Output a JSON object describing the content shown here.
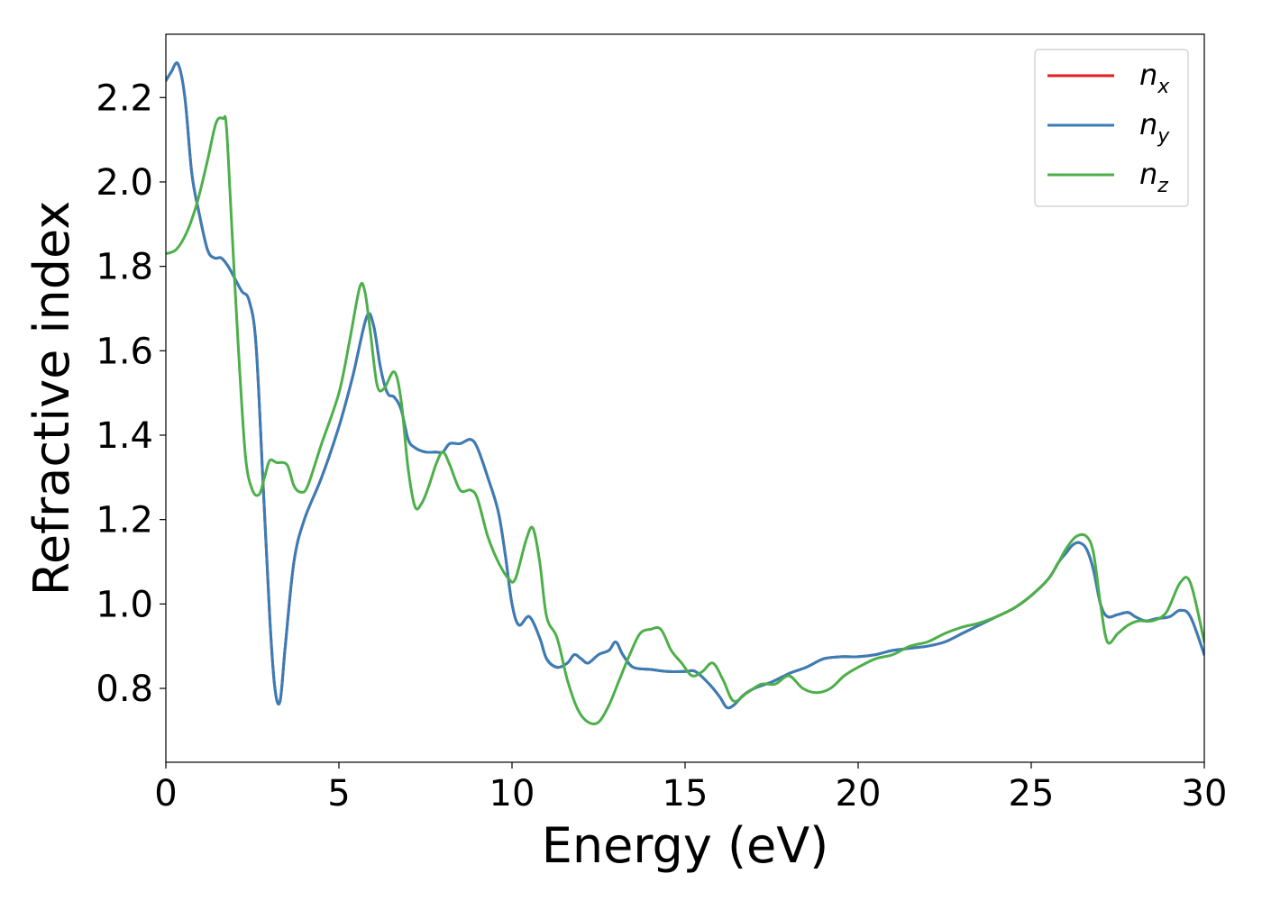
{
  "chart_data": {
    "type": "line",
    "xlabel": "Energy (eV)",
    "ylabel": "Refractive index",
    "xlim": [
      0,
      30
    ],
    "ylim": [
      0.625,
      2.35
    ],
    "grid": false,
    "legend_position": "top-right",
    "xticks": [
      0,
      5,
      10,
      15,
      20,
      25,
      30
    ],
    "xtick_labels": [
      "0",
      "5",
      "10",
      "15",
      "20",
      "25",
      "30"
    ],
    "yticks": [
      0.8,
      1.0,
      1.2,
      1.4,
      1.6,
      1.8,
      2.0,
      2.2
    ],
    "ytick_labels": [
      "0.8",
      "1.0",
      "1.2",
      "1.4",
      "1.6",
      "1.8",
      "2.0",
      "2.2"
    ],
    "series": [
      {
        "name": "n_x",
        "legend_base": "n",
        "legend_sub": "x",
        "color": "#e41a1c",
        "x": [
          0,
          0.15,
          0.35,
          0.55,
          0.75,
          0.95,
          1.2,
          1.4,
          1.6,
          1.8,
          2.0,
          2.2,
          2.4,
          2.6,
          2.8,
          3.0,
          3.15,
          3.3,
          3.45,
          3.7,
          4.0,
          4.5,
          5.0,
          5.4,
          5.8,
          6.0,
          6.2,
          6.4,
          6.6,
          6.8,
          7.0,
          7.2,
          7.5,
          7.8,
          8.0,
          8.2,
          8.5,
          8.8,
          9.0,
          9.3,
          9.6,
          9.8,
          10.0,
          10.2,
          10.5,
          10.8,
          11.0,
          11.3,
          11.6,
          11.8,
          12.0,
          12.2,
          12.5,
          12.8,
          13.0,
          13.2,
          13.5,
          14.0,
          14.5,
          15.0,
          15.3,
          15.7,
          16.0,
          16.2,
          16.4,
          16.7,
          17.0,
          17.5,
          18.0,
          18.5,
          19.0,
          19.5,
          20.0,
          20.5,
          21.0,
          21.5,
          22.0,
          22.5,
          23.0,
          23.5,
          24.0,
          24.5,
          25.0,
          25.5,
          25.8,
          26.0,
          26.2,
          26.4,
          26.6,
          26.8,
          27.0,
          27.2,
          27.5,
          27.8,
          28.0,
          28.3,
          28.6,
          29.0,
          29.3,
          29.6,
          30.0
        ],
        "y": [
          2.24,
          2.26,
          2.28,
          2.2,
          2.02,
          1.93,
          1.84,
          1.82,
          1.82,
          1.8,
          1.77,
          1.74,
          1.72,
          1.62,
          1.3,
          0.97,
          0.8,
          0.77,
          0.9,
          1.1,
          1.2,
          1.3,
          1.42,
          1.54,
          1.68,
          1.66,
          1.56,
          1.5,
          1.49,
          1.46,
          1.39,
          1.37,
          1.36,
          1.36,
          1.36,
          1.38,
          1.38,
          1.39,
          1.37,
          1.3,
          1.22,
          1.12,
          1.0,
          0.95,
          0.97,
          0.92,
          0.87,
          0.85,
          0.86,
          0.88,
          0.87,
          0.86,
          0.88,
          0.89,
          0.91,
          0.88,
          0.85,
          0.845,
          0.84,
          0.84,
          0.84,
          0.81,
          0.78,
          0.755,
          0.76,
          0.785,
          0.8,
          0.815,
          0.835,
          0.85,
          0.87,
          0.875,
          0.875,
          0.88,
          0.89,
          0.895,
          0.9,
          0.91,
          0.93,
          0.95,
          0.97,
          0.99,
          1.02,
          1.06,
          1.1,
          1.12,
          1.14,
          1.145,
          1.13,
          1.08,
          1.0,
          0.97,
          0.975,
          0.98,
          0.97,
          0.96,
          0.965,
          0.97,
          0.985,
          0.97,
          0.88
        ]
      },
      {
        "name": "n_y",
        "legend_base": "n",
        "legend_sub": "y",
        "color": "#377eb8",
        "x": [
          0,
          0.15,
          0.35,
          0.55,
          0.75,
          0.95,
          1.2,
          1.4,
          1.6,
          1.8,
          2.0,
          2.2,
          2.4,
          2.6,
          2.8,
          3.0,
          3.15,
          3.3,
          3.45,
          3.7,
          4.0,
          4.5,
          5.0,
          5.4,
          5.8,
          6.0,
          6.2,
          6.4,
          6.6,
          6.8,
          7.0,
          7.2,
          7.5,
          7.8,
          8.0,
          8.2,
          8.5,
          8.8,
          9.0,
          9.3,
          9.6,
          9.8,
          10.0,
          10.2,
          10.5,
          10.8,
          11.0,
          11.3,
          11.6,
          11.8,
          12.0,
          12.2,
          12.5,
          12.8,
          13.0,
          13.2,
          13.5,
          14.0,
          14.5,
          15.0,
          15.3,
          15.7,
          16.0,
          16.2,
          16.4,
          16.7,
          17.0,
          17.5,
          18.0,
          18.5,
          19.0,
          19.5,
          20.0,
          20.5,
          21.0,
          21.5,
          22.0,
          22.5,
          23.0,
          23.5,
          24.0,
          24.5,
          25.0,
          25.5,
          25.8,
          26.0,
          26.2,
          26.4,
          26.6,
          26.8,
          27.0,
          27.2,
          27.5,
          27.8,
          28.0,
          28.3,
          28.6,
          29.0,
          29.3,
          29.6,
          30.0
        ],
        "y": [
          2.24,
          2.26,
          2.28,
          2.2,
          2.02,
          1.93,
          1.84,
          1.82,
          1.82,
          1.8,
          1.77,
          1.74,
          1.72,
          1.62,
          1.3,
          0.97,
          0.8,
          0.77,
          0.9,
          1.1,
          1.2,
          1.3,
          1.42,
          1.54,
          1.68,
          1.66,
          1.56,
          1.5,
          1.49,
          1.46,
          1.39,
          1.37,
          1.36,
          1.36,
          1.36,
          1.38,
          1.38,
          1.39,
          1.37,
          1.3,
          1.22,
          1.12,
          1.0,
          0.95,
          0.97,
          0.92,
          0.87,
          0.85,
          0.86,
          0.88,
          0.87,
          0.86,
          0.88,
          0.89,
          0.91,
          0.88,
          0.85,
          0.845,
          0.84,
          0.84,
          0.84,
          0.81,
          0.78,
          0.755,
          0.76,
          0.785,
          0.8,
          0.815,
          0.835,
          0.85,
          0.87,
          0.875,
          0.875,
          0.88,
          0.89,
          0.895,
          0.9,
          0.91,
          0.93,
          0.95,
          0.97,
          0.99,
          1.02,
          1.06,
          1.1,
          1.12,
          1.14,
          1.145,
          1.13,
          1.08,
          1.0,
          0.97,
          0.975,
          0.98,
          0.97,
          0.96,
          0.965,
          0.97,
          0.985,
          0.97,
          0.88
        ]
      },
      {
        "name": "n_z",
        "legend_base": "n",
        "legend_sub": "z",
        "color": "#4daf4a",
        "x": [
          0,
          0.3,
          0.6,
          0.9,
          1.2,
          1.45,
          1.65,
          1.75,
          1.9,
          2.1,
          2.3,
          2.5,
          2.7,
          2.85,
          3.0,
          3.2,
          3.5,
          3.7,
          3.9,
          4.1,
          4.5,
          5.0,
          5.3,
          5.6,
          5.75,
          5.9,
          6.1,
          6.3,
          6.6,
          6.8,
          7.0,
          7.2,
          7.4,
          7.6,
          7.8,
          8.0,
          8.2,
          8.5,
          8.8,
          9.0,
          9.3,
          9.6,
          9.9,
          10.1,
          10.4,
          10.6,
          10.8,
          11.0,
          11.3,
          11.6,
          11.9,
          12.2,
          12.5,
          12.8,
          13.1,
          13.4,
          13.7,
          14.0,
          14.3,
          14.6,
          14.9,
          15.2,
          15.5,
          15.8,
          16.1,
          16.4,
          16.8,
          17.2,
          17.6,
          18.0,
          18.4,
          18.8,
          19.2,
          19.6,
          20.0,
          20.5,
          21.0,
          21.5,
          22.0,
          22.5,
          23.0,
          23.5,
          24.0,
          24.5,
          25.0,
          25.5,
          25.8,
          26.0,
          26.3,
          26.6,
          26.8,
          27.0,
          27.2,
          27.5,
          27.8,
          28.1,
          28.5,
          28.9,
          29.3,
          29.6,
          30.0
        ],
        "y": [
          1.83,
          1.84,
          1.88,
          1.95,
          2.05,
          2.14,
          2.15,
          2.13,
          1.9,
          1.6,
          1.35,
          1.27,
          1.26,
          1.3,
          1.34,
          1.335,
          1.33,
          1.28,
          1.265,
          1.28,
          1.38,
          1.5,
          1.62,
          1.75,
          1.74,
          1.65,
          1.52,
          1.51,
          1.55,
          1.48,
          1.32,
          1.23,
          1.24,
          1.28,
          1.33,
          1.36,
          1.33,
          1.27,
          1.27,
          1.25,
          1.16,
          1.1,
          1.06,
          1.06,
          1.15,
          1.18,
          1.1,
          0.97,
          0.92,
          0.82,
          0.75,
          0.72,
          0.72,
          0.76,
          0.82,
          0.88,
          0.93,
          0.94,
          0.94,
          0.89,
          0.86,
          0.83,
          0.84,
          0.86,
          0.82,
          0.77,
          0.79,
          0.81,
          0.81,
          0.83,
          0.8,
          0.79,
          0.8,
          0.83,
          0.85,
          0.87,
          0.88,
          0.9,
          0.91,
          0.93,
          0.945,
          0.955,
          0.97,
          0.99,
          1.02,
          1.06,
          1.1,
          1.13,
          1.16,
          1.16,
          1.12,
          1.0,
          0.91,
          0.93,
          0.95,
          0.96,
          0.96,
          0.98,
          1.05,
          1.05,
          0.91
        ]
      }
    ]
  }
}
